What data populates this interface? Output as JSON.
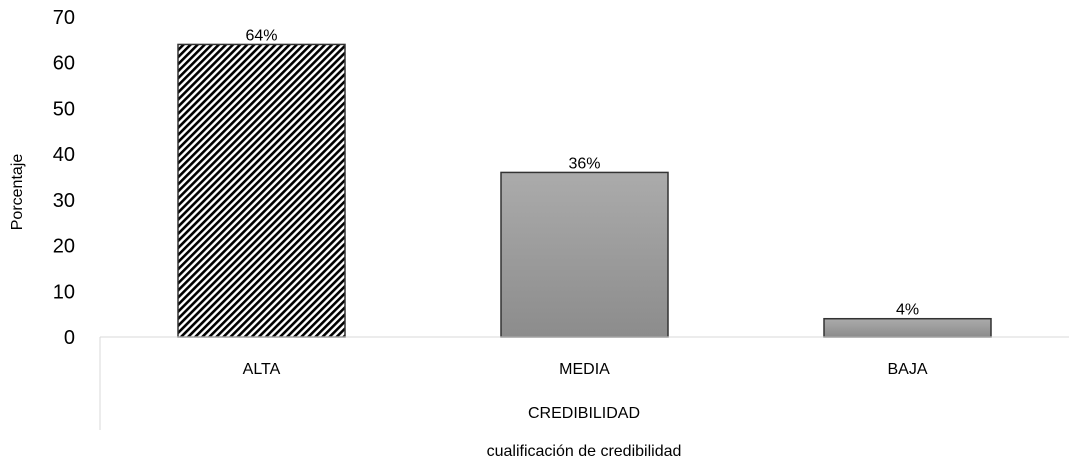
{
  "chart_data": {
    "type": "bar",
    "categories": [
      "ALTA",
      "MEDIA",
      "BAJA"
    ],
    "values": [
      64,
      36,
      4
    ],
    "data_labels": [
      "64%",
      "36%",
      "4%"
    ],
    "category_group_label": "CREDIBILIDAD",
    "xlabel": "cualificación de credibilidad",
    "ylabel": "Porcentaje",
    "ylim": [
      0,
      70
    ],
    "yticks": [
      "0",
      "10",
      "20",
      "30",
      "40",
      "50",
      "60",
      "70"
    ],
    "grid": false,
    "legend": "none",
    "bar_styles": [
      "diagonal-hatch",
      "gray-gradient",
      "gray-gradient"
    ],
    "colors": {
      "bar_fill": "#9e9e9e",
      "bar_border": "#333333",
      "axis_line": "#d9d9d9",
      "hatch": "#000000"
    }
  }
}
